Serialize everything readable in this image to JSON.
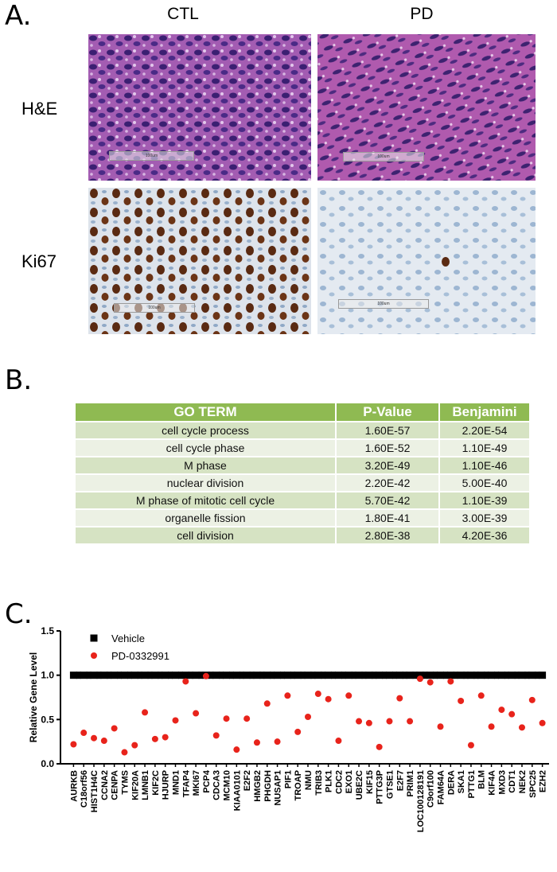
{
  "panels": {
    "a_label": "A.",
    "b_label": "B.",
    "c_label": "C."
  },
  "histology": {
    "columns": [
      "CTL",
      "PD"
    ],
    "rows": [
      "H&E",
      "Ki67"
    ],
    "scale_label": "100um"
  },
  "go_table": {
    "headers": [
      "GO TERM",
      "P-Value",
      "Benjamini"
    ],
    "rows": [
      [
        "cell cycle process",
        "1.60E-57",
        "2.20E-54"
      ],
      [
        "cell cycle phase",
        "1.60E-52",
        "1.10E-49"
      ],
      [
        "M phase",
        "3.20E-49",
        "1.10E-46"
      ],
      [
        "nuclear division",
        "2.20E-42",
        "5.00E-40"
      ],
      [
        "M phase of mitotic cell cycle",
        "5.70E-42",
        "1.10E-39"
      ],
      [
        "organelle fission",
        "1.80E-41",
        "3.00E-39"
      ],
      [
        "cell division",
        "2.80E-38",
        "4.20E-36"
      ]
    ]
  },
  "colors": {
    "header_green": "#8fba52",
    "row_dark": "#d6e3c3",
    "row_light": "#ecf1e4",
    "vehicle": "#000000",
    "pd": "#e8231b",
    "he_purple": "#9a4aa8",
    "ki67_brown": "#5a2a12"
  },
  "chart_data": {
    "type": "scatter",
    "ylabel": "Relative Gene Level",
    "xlabel": "",
    "ylim": [
      0,
      1.5
    ],
    "yticks": [
      0.0,
      0.5,
      1.0,
      1.5
    ],
    "grid": false,
    "legend_position": "top-left",
    "categories": [
      "AURKB",
      "C18orf56",
      "HIST1H4C",
      "CCNA2",
      "CENPA",
      "TYMS",
      "KIF20A",
      "LMNB1",
      "KIF2C",
      "HJURP",
      "MND1",
      "TFAP4",
      "MKI67",
      "PCP4",
      "CDCA3",
      "MCM10",
      "KIAA0101",
      "E2F2",
      "HMGB2",
      "PHGDH",
      "NUSAP1",
      "PIF1",
      "TROAP",
      "NMU",
      "TRIB3",
      "PLK1",
      "CDC2",
      "EXO1",
      "UBE2C",
      "KIF15",
      "PTTG3P",
      "GTSE1",
      "E2F7",
      "PRIM1",
      "LOC100128191",
      "C9orf100",
      "FAM64A",
      "DERA",
      "SKA1",
      "PTTG1",
      "BLM",
      "KIF4A",
      "MXD3",
      "CDT1",
      "NEK2",
      "SPC25",
      "EZH2"
    ],
    "series": [
      {
        "name": "Vehicle",
        "marker": "square",
        "values": [
          1,
          1,
          1,
          1,
          1,
          1,
          1,
          1,
          1,
          1,
          1,
          1,
          1,
          1,
          1,
          1,
          1,
          1,
          1,
          1,
          1,
          1,
          1,
          1,
          1,
          1,
          1,
          1,
          1,
          1,
          1,
          1,
          1,
          1,
          1,
          1,
          1,
          1,
          1,
          1,
          1,
          1,
          1,
          1,
          1,
          1,
          1
        ]
      },
      {
        "name": "PD-0332991",
        "marker": "circle",
        "values": [
          0.22,
          0.35,
          0.29,
          0.26,
          0.4,
          0.13,
          0.21,
          0.58,
          0.28,
          0.3,
          0.49,
          0.93,
          0.57,
          0.99,
          0.32,
          0.51,
          0.16,
          0.51,
          0.24,
          0.68,
          0.25,
          0.77,
          0.36,
          0.53,
          0.79,
          0.73,
          0.26,
          0.77,
          0.48,
          0.46,
          0.19,
          0.48,
          0.74,
          0.48,
          0.96,
          0.92,
          0.42,
          0.93,
          0.71,
          0.21,
          0.77,
          0.42,
          0.61,
          0.56,
          0.41,
          0.72,
          0.46
        ]
      }
    ]
  }
}
